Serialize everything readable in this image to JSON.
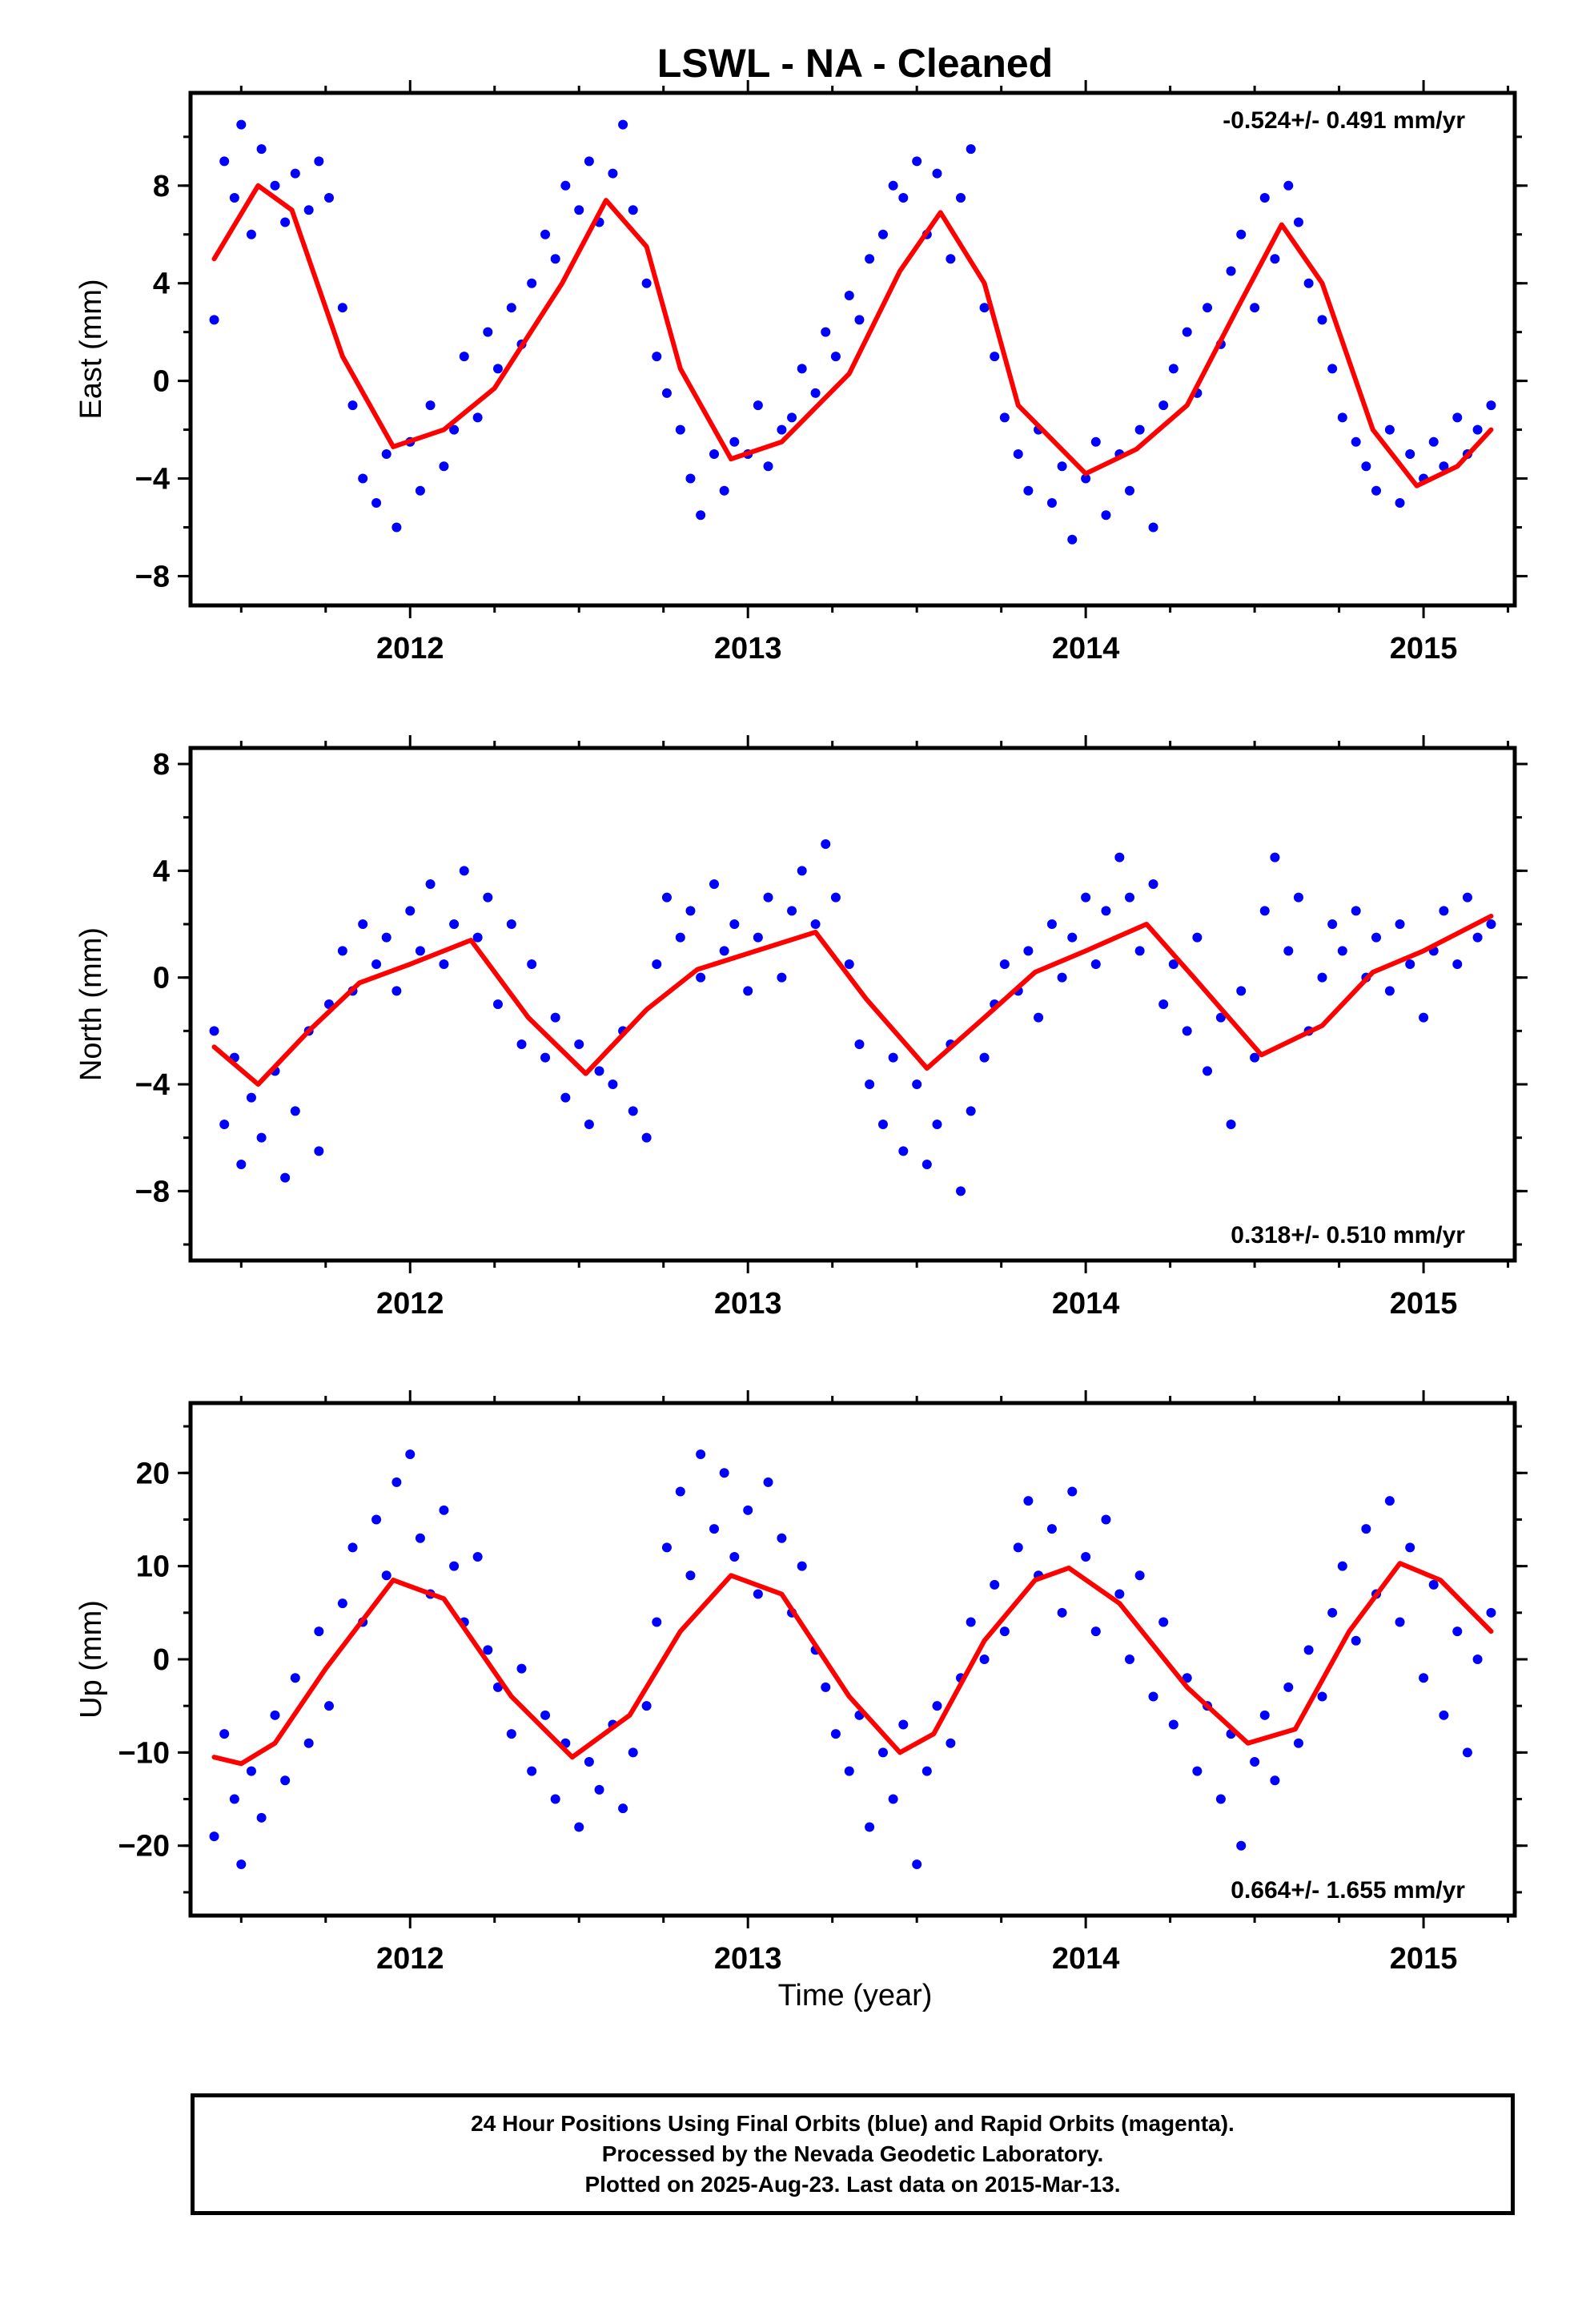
{
  "figure_title": "LSWL  - NA - Cleaned",
  "xlabel": "Time (year)",
  "caption": [
    "24 Hour Positions Using Final Orbits (blue) and Rapid Orbits (magenta).",
    "Processed by the Nevada Geodetic Laboratory.",
    "Plotted on 2025-Aug-23. Last data on 2015-Mar-13."
  ],
  "colors": {
    "points": "#0000ff",
    "fit": "#ff0000",
    "axes": "#000000"
  },
  "chart_data": [
    {
      "type": "scatter",
      "ylabel": "East (mm)",
      "rate_label": "-0.524+/- 0.491 mm/yr",
      "rate_position": "top-right",
      "xlim": [
        2011.35,
        2015.27
      ],
      "ylim": [
        -9.2,
        11.8
      ],
      "xticks": [
        2012,
        2013,
        2014,
        2015
      ],
      "yticks": [
        -8,
        -4,
        0,
        4,
        8
      ],
      "fit": {
        "name": "model",
        "x": [
          2011.42,
          2011.55,
          2011.65,
          2011.8,
          2011.95,
          2012.1,
          2012.25,
          2012.45,
          2012.58,
          2012.7,
          2012.8,
          2012.95,
          2013.1,
          2013.3,
          2013.45,
          2013.57,
          2013.7,
          2013.8,
          2014.0,
          2014.15,
          2014.3,
          2014.45,
          2014.58,
          2014.7,
          2014.85,
          2014.98,
          2015.1,
          2015.2
        ],
        "y": [
          5.0,
          8.0,
          7.0,
          1.0,
          -2.7,
          -2.0,
          -0.3,
          4.0,
          7.4,
          5.5,
          0.5,
          -3.2,
          -2.5,
          0.3,
          4.5,
          6.9,
          4.0,
          -1.0,
          -3.8,
          -2.8,
          -1.0,
          3.0,
          6.4,
          4.0,
          -2.0,
          -4.3,
          -3.5,
          -2.0
        ]
      },
      "points": {
        "name": "daily positions",
        "x": [
          2011.42,
          2011.45,
          2011.48,
          2011.5,
          2011.53,
          2011.56,
          2011.6,
          2011.63,
          2011.66,
          2011.7,
          2011.73,
          2011.76,
          2011.8,
          2011.83,
          2011.86,
          2011.9,
          2011.93,
          2011.96,
          2012.0,
          2012.03,
          2012.06,
          2012.1,
          2012.13,
          2012.16,
          2012.2,
          2012.23,
          2012.26,
          2012.3,
          2012.33,
          2012.36,
          2012.4,
          2012.43,
          2012.46,
          2012.5,
          2012.53,
          2012.56,
          2012.6,
          2012.63,
          2012.66,
          2012.7,
          2012.73,
          2012.76,
          2012.8,
          2012.83,
          2012.86,
          2012.9,
          2012.93,
          2012.96,
          2013.0,
          2013.03,
          2013.06,
          2013.1,
          2013.13,
          2013.16,
          2013.2,
          2013.23,
          2013.26,
          2013.3,
          2013.33,
          2013.36,
          2013.4,
          2013.43,
          2013.46,
          2013.5,
          2013.53,
          2013.56,
          2013.6,
          2013.63,
          2013.66,
          2013.7,
          2013.73,
          2013.76,
          2013.8,
          2013.83,
          2013.86,
          2013.9,
          2013.93,
          2013.96,
          2014.0,
          2014.03,
          2014.06,
          2014.1,
          2014.13,
          2014.16,
          2014.2,
          2014.23,
          2014.26,
          2014.3,
          2014.33,
          2014.36,
          2014.4,
          2014.43,
          2014.46,
          2014.5,
          2014.53,
          2014.56,
          2014.6,
          2014.63,
          2014.66,
          2014.7,
          2014.73,
          2014.76,
          2014.8,
          2014.83,
          2014.86,
          2014.9,
          2014.93,
          2014.96,
          2015.0,
          2015.03,
          2015.06,
          2015.1,
          2015.13,
          2015.16,
          2015.2
        ],
        "y": [
          2.5,
          9.0,
          7.5,
          10.5,
          6.0,
          9.5,
          8.0,
          6.5,
          8.5,
          7.0,
          9.0,
          7.5,
          3.0,
          -1.0,
          -4.0,
          -5.0,
          -3.0,
          -6.0,
          -2.5,
          -4.5,
          -1.0,
          -3.5,
          -2.0,
          1.0,
          -1.5,
          2.0,
          0.5,
          3.0,
          1.5,
          4.0,
          6.0,
          5.0,
          8.0,
          7.0,
          9.0,
          6.5,
          8.5,
          10.5,
          7.0,
          4.0,
          1.0,
          -0.5,
          -2.0,
          -4.0,
          -5.5,
          -3.0,
          -4.5,
          -2.5,
          -3.0,
          -1.0,
          -3.5,
          -2.0,
          -1.5,
          0.5,
          -0.5,
          2.0,
          1.0,
          3.5,
          2.5,
          5.0,
          6.0,
          8.0,
          7.5,
          9.0,
          6.0,
          8.5,
          5.0,
          7.5,
          9.5,
          3.0,
          1.0,
          -1.5,
          -3.0,
          -4.5,
          -2.0,
          -5.0,
          -3.5,
          -6.5,
          -4.0,
          -2.5,
          -5.5,
          -3.0,
          -4.5,
          -2.0,
          -6.0,
          -1.0,
          0.5,
          2.0,
          -0.5,
          3.0,
          1.5,
          4.5,
          6.0,
          3.0,
          7.5,
          5.0,
          8.0,
          6.5,
          4.0,
          2.5,
          0.5,
          -1.5,
          -2.5,
          -3.5,
          -4.5,
          -2.0,
          -5.0,
          -3.0,
          -4.0,
          -2.5,
          -3.5,
          -1.5,
          -3.0,
          -2.0,
          -1.0
        ]
      }
    },
    {
      "type": "scatter",
      "ylabel": "North (mm)",
      "rate_label": "0.318+/- 0.510 mm/yr",
      "rate_position": "bottom-right",
      "xlim": [
        2011.35,
        2015.27
      ],
      "ylim": [
        -10.6,
        8.6
      ],
      "xticks": [
        2012,
        2013,
        2014,
        2015
      ],
      "yticks": [
        -8,
        -4,
        0,
        4,
        8
      ],
      "fit": {
        "name": "model",
        "x": [
          2011.42,
          2011.55,
          2011.7,
          2011.85,
          2012.0,
          2012.18,
          2012.35,
          2012.52,
          2012.7,
          2012.85,
          2013.0,
          2013.2,
          2013.35,
          2013.53,
          2013.7,
          2013.85,
          2014.0,
          2014.18,
          2014.32,
          2014.52,
          2014.7,
          2014.85,
          2015.0,
          2015.2
        ],
        "y": [
          -2.6,
          -4.0,
          -2.0,
          -0.2,
          0.5,
          1.4,
          -1.5,
          -3.6,
          -1.2,
          0.3,
          0.9,
          1.7,
          -0.8,
          -3.4,
          -1.5,
          0.2,
          1.0,
          2.0,
          0.0,
          -2.9,
          -1.8,
          0.2,
          1.0,
          2.3
        ]
      },
      "points": {
        "name": "daily positions",
        "x": [
          2011.42,
          2011.45,
          2011.48,
          2011.5,
          2011.53,
          2011.56,
          2011.6,
          2011.63,
          2011.66,
          2011.7,
          2011.73,
          2011.76,
          2011.8,
          2011.83,
          2011.86,
          2011.9,
          2011.93,
          2011.96,
          2012.0,
          2012.03,
          2012.06,
          2012.1,
          2012.13,
          2012.16,
          2012.2,
          2012.23,
          2012.26,
          2012.3,
          2012.33,
          2012.36,
          2012.4,
          2012.43,
          2012.46,
          2012.5,
          2012.53,
          2012.56,
          2012.6,
          2012.63,
          2012.66,
          2012.7,
          2012.73,
          2012.76,
          2012.8,
          2012.83,
          2012.86,
          2012.9,
          2012.93,
          2012.96,
          2013.0,
          2013.03,
          2013.06,
          2013.1,
          2013.13,
          2013.16,
          2013.2,
          2013.23,
          2013.26,
          2013.3,
          2013.33,
          2013.36,
          2013.4,
          2013.43,
          2013.46,
          2013.5,
          2013.53,
          2013.56,
          2013.6,
          2013.63,
          2013.66,
          2013.7,
          2013.73,
          2013.76,
          2013.8,
          2013.83,
          2013.86,
          2013.9,
          2013.93,
          2013.96,
          2014.0,
          2014.03,
          2014.06,
          2014.1,
          2014.13,
          2014.16,
          2014.2,
          2014.23,
          2014.26,
          2014.3,
          2014.33,
          2014.36,
          2014.4,
          2014.43,
          2014.46,
          2014.5,
          2014.53,
          2014.56,
          2014.6,
          2014.63,
          2014.66,
          2014.7,
          2014.73,
          2014.76,
          2014.8,
          2014.83,
          2014.86,
          2014.9,
          2014.93,
          2014.96,
          2015.0,
          2015.03,
          2015.06,
          2015.1,
          2015.13,
          2015.16,
          2015.2
        ],
        "y": [
          -2.0,
          -5.5,
          -3.0,
          -7.0,
          -4.5,
          -6.0,
          -3.5,
          -7.5,
          -5.0,
          -2.0,
          -6.5,
          -1.0,
          1.0,
          -0.5,
          2.0,
          0.5,
          1.5,
          -0.5,
          2.5,
          1.0,
          3.5,
          0.5,
          2.0,
          4.0,
          1.5,
          3.0,
          -1.0,
          2.0,
          -2.5,
          0.5,
          -3.0,
          -1.5,
          -4.5,
          -2.5,
          -5.5,
          -3.5,
          -4.0,
          -2.0,
          -5.0,
          -6.0,
          0.5,
          3.0,
          1.5,
          2.5,
          0.0,
          3.5,
          1.0,
          2.0,
          -0.5,
          1.5,
          3.0,
          0.0,
          2.5,
          4.0,
          2.0,
          5.0,
          3.0,
          0.5,
          -2.5,
          -4.0,
          -5.5,
          -3.0,
          -6.5,
          -4.0,
          -7.0,
          -5.5,
          -2.5,
          -8.0,
          -5.0,
          -3.0,
          -1.0,
          0.5,
          -0.5,
          1.0,
          -1.5,
          2.0,
          0.0,
          1.5,
          3.0,
          0.5,
          2.5,
          4.5,
          3.0,
          1.0,
          3.5,
          -1.0,
          0.5,
          -2.0,
          1.5,
          -3.5,
          -1.5,
          -5.5,
          -0.5,
          -3.0,
          2.5,
          4.5,
          1.0,
          3.0,
          -2.0,
          0.0,
          2.0,
          1.0,
          2.5,
          0.0,
          1.5,
          -0.5,
          2.0,
          0.5,
          -1.5,
          1.0,
          2.5,
          0.5,
          3.0,
          1.5,
          2.0
        ]
      }
    },
    {
      "type": "scatter",
      "ylabel": "Up (mm)",
      "rate_label": "0.664+/- 1.655 mm/yr",
      "rate_position": "bottom-right",
      "xlim": [
        2011.35,
        2015.27
      ],
      "ylim": [
        -27.5,
        27.5
      ],
      "xticks": [
        2012,
        2013,
        2014,
        2015
      ],
      "yticks": [
        -20,
        -10,
        0,
        10,
        20
      ],
      "fit": {
        "name": "model",
        "x": [
          2011.42,
          2011.5,
          2011.6,
          2011.75,
          2011.95,
          2012.1,
          2012.3,
          2012.48,
          2012.65,
          2012.8,
          2012.95,
          2013.1,
          2013.3,
          2013.45,
          2013.55,
          2013.7,
          2013.85,
          2013.95,
          2014.1,
          2014.3,
          2014.48,
          2014.62,
          2014.78,
          2014.93,
          2015.05,
          2015.2
        ],
        "y": [
          -10.5,
          -11.2,
          -9.0,
          -1.0,
          8.5,
          6.5,
          -4.0,
          -10.5,
          -6.0,
          3.0,
          9.0,
          7.0,
          -4.0,
          -10.0,
          -8.0,
          2.0,
          8.5,
          9.8,
          6.0,
          -3.0,
          -9.0,
          -7.5,
          3.0,
          10.3,
          8.5,
          3.0
        ]
      },
      "points": {
        "name": "daily positions",
        "x": [
          2011.42,
          2011.45,
          2011.48,
          2011.5,
          2011.53,
          2011.56,
          2011.6,
          2011.63,
          2011.66,
          2011.7,
          2011.73,
          2011.76,
          2011.8,
          2011.83,
          2011.86,
          2011.9,
          2011.93,
          2011.96,
          2012.0,
          2012.03,
          2012.06,
          2012.1,
          2012.13,
          2012.16,
          2012.2,
          2012.23,
          2012.26,
          2012.3,
          2012.33,
          2012.36,
          2012.4,
          2012.43,
          2012.46,
          2012.5,
          2012.53,
          2012.56,
          2012.6,
          2012.63,
          2012.66,
          2012.7,
          2012.73,
          2012.76,
          2012.8,
          2012.83,
          2012.86,
          2012.9,
          2012.93,
          2012.96,
          2013.0,
          2013.03,
          2013.06,
          2013.1,
          2013.13,
          2013.16,
          2013.2,
          2013.23,
          2013.26,
          2013.3,
          2013.33,
          2013.36,
          2013.4,
          2013.43,
          2013.46,
          2013.5,
          2013.53,
          2013.56,
          2013.6,
          2013.63,
          2013.66,
          2013.7,
          2013.73,
          2013.76,
          2013.8,
          2013.83,
          2013.86,
          2013.9,
          2013.93,
          2013.96,
          2014.0,
          2014.03,
          2014.06,
          2014.1,
          2014.13,
          2014.16,
          2014.2,
          2014.23,
          2014.26,
          2014.3,
          2014.33,
          2014.36,
          2014.4,
          2014.43,
          2014.46,
          2014.5,
          2014.53,
          2014.56,
          2014.6,
          2014.63,
          2014.66,
          2014.7,
          2014.73,
          2014.76,
          2014.8,
          2014.83,
          2014.86,
          2014.9,
          2014.93,
          2014.96,
          2015.0,
          2015.03,
          2015.06,
          2015.1,
          2015.13,
          2015.16,
          2015.2
        ],
        "y": [
          -19.0,
          -8.0,
          -15.0,
          -22.0,
          -12.0,
          -17.0,
          -6.0,
          -13.0,
          -2.0,
          -9.0,
          3.0,
          -5.0,
          6.0,
          12.0,
          4.0,
          15.0,
          9.0,
          19.0,
          22.0,
          13.0,
          7.0,
          16.0,
          10.0,
          4.0,
          11.0,
          1.0,
          -3.0,
          -8.0,
          -1.0,
          -12.0,
          -6.0,
          -15.0,
          -9.0,
          -18.0,
          -11.0,
          -14.0,
          -7.0,
          -16.0,
          -10.0,
          -5.0,
          4.0,
          12.0,
          18.0,
          9.0,
          22.0,
          14.0,
          20.0,
          11.0,
          16.0,
          7.0,
          19.0,
          13.0,
          5.0,
          10.0,
          1.0,
          -3.0,
          -8.0,
          -12.0,
          -6.0,
          -18.0,
          -10.0,
          -15.0,
          -7.0,
          -22.0,
          -12.0,
          -5.0,
          -9.0,
          -2.0,
          4.0,
          0.0,
          8.0,
          3.0,
          12.0,
          17.0,
          9.0,
          14.0,
          5.0,
          18.0,
          11.0,
          3.0,
          15.0,
          7.0,
          0.0,
          9.0,
          -4.0,
          4.0,
          -7.0,
          -2.0,
          -12.0,
          -5.0,
          -15.0,
          -8.0,
          -20.0,
          -11.0,
          -6.0,
          -13.0,
          -3.0,
          -9.0,
          1.0,
          -4.0,
          5.0,
          10.0,
          2.0,
          14.0,
          7.0,
          17.0,
          4.0,
          12.0,
          -2.0,
          8.0,
          -6.0,
          3.0,
          -10.0,
          0.0,
          5.0
        ]
      }
    }
  ]
}
